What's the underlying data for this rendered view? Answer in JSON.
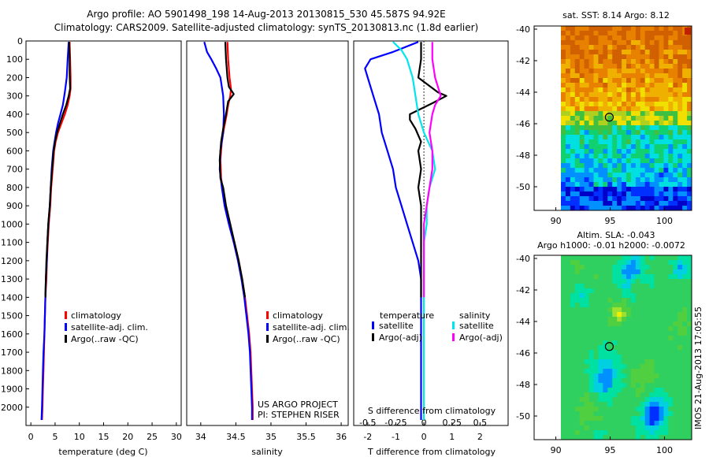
{
  "header": {
    "line1": "Argo profile: AO 5901498_198 14-Aug-2013 20130815_530 45.587S 94.92E",
    "line2": "Climatology: CARS2009. Satellite-adjusted climatology: synTS_20130813.nc (1.8d earlier)"
  },
  "colors": {
    "climatology": "#ff0000",
    "satellite": "#0000ff",
    "argo": "#000000",
    "satellite_diff_salinity": "#00e5ee",
    "argo_diff_salinity": "#ff00ff"
  },
  "credits": {
    "project": "US ARGO PROJECT",
    "pi": "PI: STEPHEN RISER",
    "imos": "IMOS 21-Aug-2013 17:05:55"
  },
  "chart_data": [
    {
      "type": "line",
      "panel": "temperature",
      "xlabel": "temperature (deg C)",
      "ylabel": "",
      "xlim": [
        -1,
        31
      ],
      "ylim": [
        2100,
        0
      ],
      "xticks": [
        0,
        5,
        10,
        15,
        20,
        25,
        30
      ],
      "yticks": [
        0,
        100,
        200,
        300,
        400,
        500,
        600,
        700,
        800,
        900,
        1000,
        1100,
        1200,
        1300,
        1400,
        1500,
        1600,
        1700,
        1800,
        1900,
        2000
      ],
      "legend": [
        "climatology",
        "satellite-adj. clim.",
        "Argo(..raw -QC)"
      ],
      "series": [
        {
          "name": "climatology",
          "color": "#ff0000",
          "points": [
            [
              8.0,
              5
            ],
            [
              8.1,
              100
            ],
            [
              8.2,
              200
            ],
            [
              8.2,
              260
            ],
            [
              8.0,
              300
            ],
            [
              7.6,
              350
            ],
            [
              7.0,
              400
            ],
            [
              6.3,
              450
            ],
            [
              5.6,
              500
            ],
            [
              5.1,
              550
            ],
            [
              4.8,
              600
            ],
            [
              4.5,
              700
            ],
            [
              4.2,
              800
            ],
            [
              4.0,
              900
            ],
            [
              3.7,
              1000
            ],
            [
              3.5,
              1100
            ],
            [
              3.3,
              1200
            ],
            [
              3.2,
              1300
            ],
            [
              3.0,
              1400
            ],
            [
              2.9,
              1500
            ],
            [
              2.8,
              1600
            ],
            [
              2.7,
              1700
            ],
            [
              2.6,
              1800
            ],
            [
              2.5,
              1900
            ],
            [
              2.4,
              2000
            ],
            [
              2.3,
              2070
            ]
          ]
        },
        {
          "name": "satellite-adj. clim.",
          "color": "#0000ff",
          "points": [
            [
              7.8,
              5
            ],
            [
              7.6,
              100
            ],
            [
              7.4,
              200
            ],
            [
              7.0,
              280
            ],
            [
              6.6,
              350
            ],
            [
              6.1,
              400
            ],
            [
              5.6,
              450
            ],
            [
              5.2,
              500
            ],
            [
              4.9,
              550
            ],
            [
              4.6,
              600
            ],
            [
              4.3,
              700
            ],
            [
              4.1,
              800
            ],
            [
              3.9,
              900
            ],
            [
              3.6,
              1000
            ],
            [
              3.4,
              1100
            ],
            [
              3.3,
              1200
            ],
            [
              3.1,
              1300
            ],
            [
              3.0,
              1400
            ],
            [
              2.9,
              1500
            ],
            [
              2.8,
              1600
            ],
            [
              2.6,
              1700
            ],
            [
              2.5,
              1800
            ],
            [
              2.4,
              1900
            ],
            [
              2.3,
              2000
            ],
            [
              2.2,
              2070
            ]
          ]
        },
        {
          "name": "Argo(..raw -QC)",
          "color": "#000000",
          "points": [
            [
              7.9,
              5
            ],
            [
              8.0,
              100
            ],
            [
              8.0,
              180
            ],
            [
              8.1,
              260
            ],
            [
              7.8,
              300
            ],
            [
              7.3,
              350
            ],
            [
              6.6,
              400
            ],
            [
              6.0,
              450
            ],
            [
              5.4,
              500
            ],
            [
              5.0,
              550
            ],
            [
              4.7,
              600
            ],
            [
              4.4,
              700
            ],
            [
              4.1,
              800
            ],
            [
              3.9,
              900
            ],
            [
              3.6,
              1000
            ],
            [
              3.4,
              1100
            ],
            [
              3.2,
              1200
            ],
            [
              3.1,
              1300
            ],
            [
              3.0,
              1400
            ]
          ]
        }
      ]
    },
    {
      "type": "line",
      "panel": "salinity",
      "xlabel": "salinity",
      "ylabel": "",
      "xlim": [
        33.8,
        36.1
      ],
      "ylim": [
        2100,
        0
      ],
      "xticks": [
        34,
        34.5,
        35,
        35.5,
        36
      ],
      "legend": [
        "climatology",
        "satellite-adj. clim.",
        "Argo(..raw -QC)"
      ],
      "series": [
        {
          "name": "climatology",
          "color": "#ff0000",
          "points": [
            [
              34.38,
              5
            ],
            [
              34.39,
              100
            ],
            [
              34.41,
              200
            ],
            [
              34.43,
              260
            ],
            [
              34.42,
              300
            ],
            [
              34.39,
              350
            ],
            [
              34.37,
              400
            ],
            [
              34.33,
              480
            ],
            [
              34.3,
              550
            ],
            [
              34.28,
              650
            ],
            [
              34.29,
              750
            ],
            [
              34.31,
              800
            ],
            [
              34.35,
              900
            ],
            [
              34.41,
              1000
            ],
            [
              34.48,
              1100
            ],
            [
              34.54,
              1200
            ],
            [
              34.59,
              1300
            ],
            [
              34.63,
              1400
            ],
            [
              34.66,
              1500
            ],
            [
              34.69,
              1600
            ],
            [
              34.71,
              1700
            ],
            [
              34.72,
              1800
            ],
            [
              34.73,
              1900
            ],
            [
              34.74,
              2000
            ],
            [
              34.74,
              2070
            ]
          ]
        },
        {
          "name": "satellite-adj. clim.",
          "color": "#0000ff",
          "points": [
            [
              34.05,
              5
            ],
            [
              34.09,
              60
            ],
            [
              34.15,
              100
            ],
            [
              34.22,
              150
            ],
            [
              34.28,
              200
            ],
            [
              34.32,
              300
            ],
            [
              34.33,
              400
            ],
            [
              34.32,
              500
            ],
            [
              34.28,
              600
            ],
            [
              34.27,
              700
            ],
            [
              34.3,
              800
            ],
            [
              34.34,
              900
            ],
            [
              34.4,
              1000
            ],
            [
              34.47,
              1100
            ],
            [
              34.53,
              1200
            ],
            [
              34.58,
              1300
            ],
            [
              34.62,
              1400
            ],
            [
              34.65,
              1500
            ],
            [
              34.68,
              1600
            ],
            [
              34.7,
              1700
            ],
            [
              34.71,
              1800
            ],
            [
              34.72,
              1900
            ],
            [
              34.73,
              2000
            ],
            [
              34.73,
              2070
            ]
          ]
        },
        {
          "name": "Argo(..raw -QC)",
          "color": "#000000",
          "points": [
            [
              34.35,
              5
            ],
            [
              34.36,
              100
            ],
            [
              34.38,
              200
            ],
            [
              34.4,
              250
            ],
            [
              34.47,
              290
            ],
            [
              34.39,
              330
            ],
            [
              34.36,
              400
            ],
            [
              34.32,
              480
            ],
            [
              34.29,
              550
            ],
            [
              34.27,
              650
            ],
            [
              34.28,
              750
            ],
            [
              34.32,
              800
            ],
            [
              34.36,
              900
            ],
            [
              34.42,
              1000
            ],
            [
              34.48,
              1100
            ],
            [
              34.54,
              1200
            ],
            [
              34.59,
              1300
            ],
            [
              34.63,
              1400
            ]
          ]
        }
      ]
    },
    {
      "type": "line",
      "panel": "difference",
      "xlabel": "T difference from climatology",
      "ylabel": "",
      "top_axis_label": "S difference from climatology",
      "xlim": [
        -2.5,
        3
      ],
      "ylim": [
        2100,
        0
      ],
      "xticks": [
        -2,
        -1,
        0,
        1,
        2
      ],
      "top_ticks": [
        "-0.5",
        "-0.25",
        "0",
        "0.25",
        "0.5"
      ],
      "legend_headers": [
        "temperature",
        "salinity"
      ],
      "legend": [
        "satellite",
        "Argo(-adj)",
        "satellite",
        "Argo(-adj)"
      ],
      "series": [
        {
          "name": "temperature satellite",
          "color": "#0000ff",
          "points": [
            [
              -0.2,
              5
            ],
            [
              -1.1,
              60
            ],
            [
              -1.9,
              100
            ],
            [
              -2.1,
              150
            ],
            [
              -2.0,
              200
            ],
            [
              -1.8,
              300
            ],
            [
              -1.6,
              400
            ],
            [
              -1.5,
              500
            ],
            [
              -1.3,
              600
            ],
            [
              -1.1,
              700
            ],
            [
              -1.0,
              800
            ],
            [
              -0.8,
              900
            ],
            [
              -0.6,
              1000
            ],
            [
              -0.4,
              1100
            ],
            [
              -0.2,
              1200
            ],
            [
              -0.1,
              1300
            ],
            [
              -0.1,
              1400
            ],
            [
              -0.1,
              1500
            ],
            [
              -0.1,
              1600
            ],
            [
              -0.1,
              1700
            ],
            [
              -0.1,
              1800
            ],
            [
              -0.1,
              1900
            ],
            [
              -0.1,
              2000
            ],
            [
              -0.1,
              2070
            ]
          ]
        },
        {
          "name": "temperature Argo(-adj)",
          "color": "#000000",
          "points": [
            [
              -0.1,
              5
            ],
            [
              -0.1,
              100
            ],
            [
              -0.2,
              200
            ],
            [
              0.5,
              280
            ],
            [
              0.8,
              300
            ],
            [
              0.3,
              340
            ],
            [
              -0.5,
              400
            ],
            [
              -0.5,
              430
            ],
            [
              -0.3,
              480
            ],
            [
              -0.1,
              550
            ],
            [
              -0.2,
              600
            ],
            [
              -0.1,
              700
            ],
            [
              -0.2,
              800
            ],
            [
              -0.1,
              900
            ],
            [
              -0.1,
              1000
            ],
            [
              -0.1,
              1100
            ],
            [
              -0.1,
              1200
            ],
            [
              -0.1,
              1300
            ],
            [
              -0.1,
              1400
            ]
          ]
        },
        {
          "name": "salinity satellite",
          "color": "#00e5ee",
          "points": [
            [
              -1.1,
              5
            ],
            [
              -0.8,
              50
            ],
            [
              -0.6,
              100
            ],
            [
              -0.4,
              200
            ],
            [
              -0.3,
              300
            ],
            [
              -0.2,
              400
            ],
            [
              0.0,
              500
            ],
            [
              0.3,
              600
            ],
            [
              0.4,
              700
            ],
            [
              0.2,
              800
            ],
            [
              0.1,
              900
            ],
            [
              0.1,
              1000
            ],
            [
              0.0,
              1100
            ],
            [
              0.0,
              1200
            ],
            [
              0.0,
              1300
            ],
            [
              0.0,
              1400
            ],
            [
              0.0,
              1500
            ],
            [
              0.0,
              1600
            ],
            [
              0.0,
              1700
            ],
            [
              0.0,
              1800
            ],
            [
              0.0,
              1900
            ],
            [
              0.0,
              2000
            ],
            [
              0.0,
              2070
            ]
          ]
        },
        {
          "name": "salinity Argo(-adj)",
          "color": "#ff00ff",
          "points": [
            [
              0.3,
              5
            ],
            [
              0.3,
              100
            ],
            [
              0.4,
              200
            ],
            [
              0.6,
              300
            ],
            [
              0.4,
              350
            ],
            [
              0.3,
              400
            ],
            [
              0.2,
              500
            ],
            [
              0.3,
              600
            ],
            [
              0.3,
              700
            ],
            [
              0.2,
              800
            ],
            [
              0.1,
              900
            ],
            [
              0.0,
              1000
            ],
            [
              0.0,
              1100
            ],
            [
              0.0,
              1200
            ],
            [
              0.0,
              1300
            ],
            [
              0.0,
              1400
            ]
          ]
        }
      ]
    },
    {
      "type": "heatmap",
      "panel": "sst-map",
      "title": "sat. SST: 8.14  Argo: 8.12",
      "xlim": [
        88,
        102.5
      ],
      "ylim": [
        -51.5,
        -39.8
      ],
      "xticks": [
        90,
        95,
        100
      ],
      "yticks": [
        -40,
        -42,
        -44,
        -46,
        -48,
        -50
      ],
      "marker": {
        "lon": 94.92,
        "lat": -45.587
      },
      "colors": [
        "#0000c8",
        "#0030ff",
        "#0090ff",
        "#00e0e0",
        "#10d070",
        "#40c040",
        "#b0d020",
        "#f0e000",
        "#f0b000",
        "#e88000",
        "#d06000",
        "#c02000"
      ]
    },
    {
      "type": "heatmap",
      "panel": "sla-map",
      "title": "Altim. SLA: -0.043",
      "subtitle": "Argo h1000: -0.01 h2000: -0.0072",
      "xlim": [
        88,
        102.5
      ],
      "ylim": [
        -51.5,
        -39.8
      ],
      "xticks": [
        90,
        95,
        100
      ],
      "yticks": [
        -40,
        -42,
        -44,
        -46,
        -48,
        -50
      ],
      "marker": {
        "lon": 94.92,
        "lat": -45.587
      },
      "colors": [
        "#0000c8",
        "#0030ff",
        "#0090ff",
        "#00d0e0",
        "#00e0a0",
        "#30d060",
        "#50d040",
        "#a0e030",
        "#f0f000"
      ]
    }
  ]
}
